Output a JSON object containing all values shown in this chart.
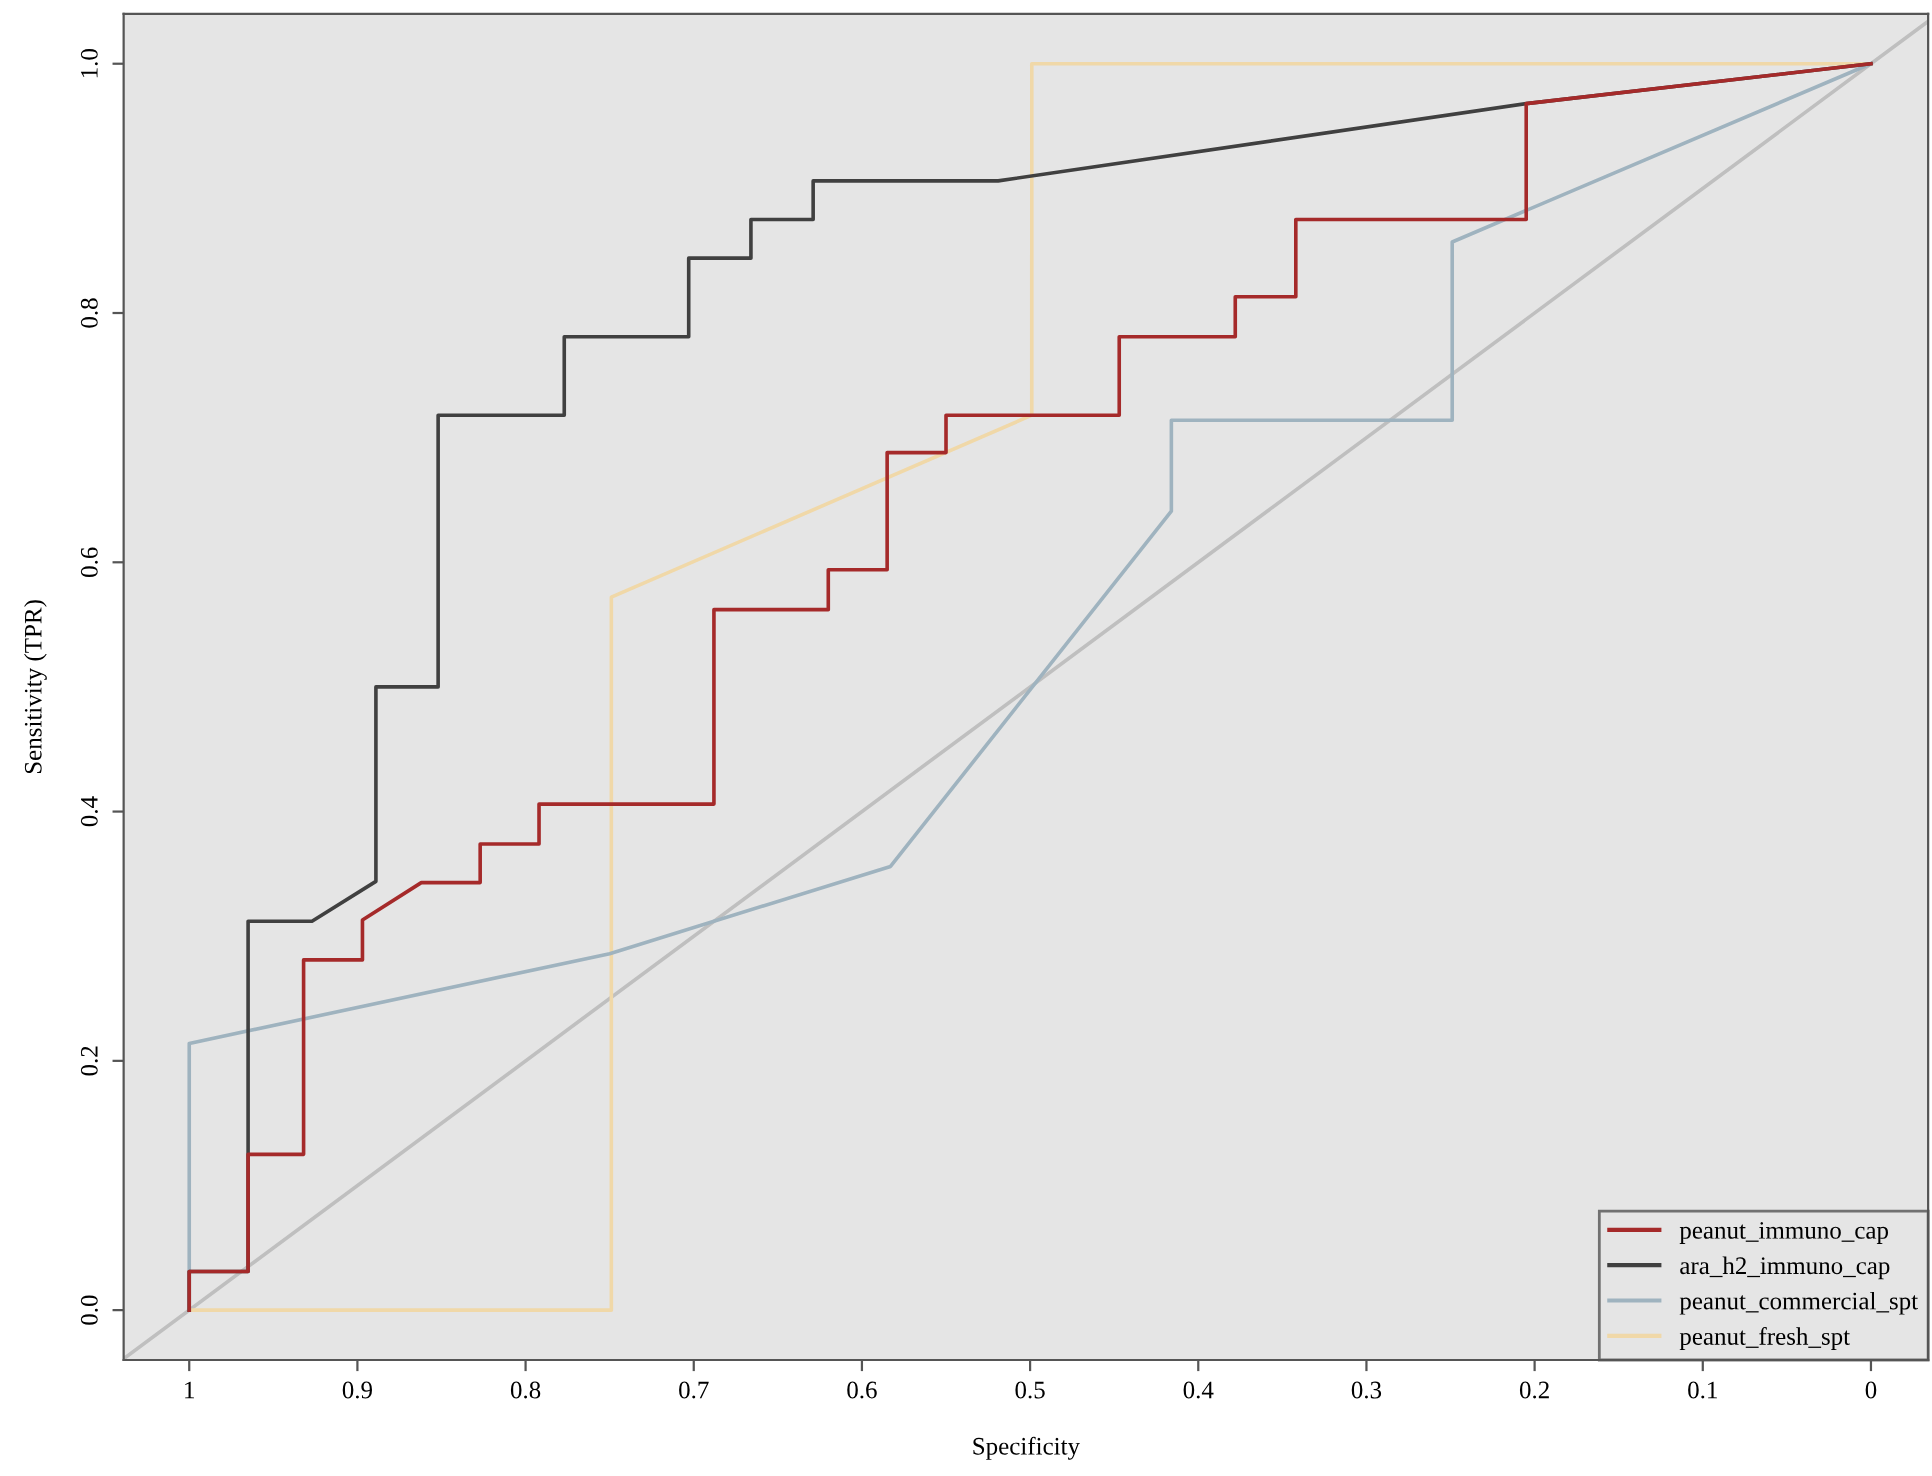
{
  "chart_data": {
    "type": "line",
    "xlabel": "Specificity",
    "ylabel": "Sensitivity (TPR)",
    "xlim": [
      1.039,
      -0.034
    ],
    "ylim": [
      -0.04,
      1.04
    ],
    "xticks": [
      1,
      0.9,
      0.8,
      0.7,
      0.6,
      0.5,
      0.4,
      0.3,
      0.2,
      0.1,
      0
    ],
    "yticks": [
      {
        "value": 0,
        "label": "0.0"
      },
      {
        "value": 0.2,
        "label": "0.2"
      },
      {
        "value": 0.4,
        "label": "0.4"
      },
      {
        "value": 0.6,
        "label": "0.6"
      },
      {
        "value": 0.8,
        "label": "0.8"
      },
      {
        "value": 1,
        "label": "1.0"
      }
    ],
    "grid": false,
    "legend": "bottom right",
    "marker": "none",
    "line_style": "solid",
    "series": [
      {
        "color": "#bfbfbf",
        "x": [
          1.039,
          -0.034
        ],
        "values": [
          -0.039,
          1.034
        ]
      },
      {
        "name": "peanut_fresh_spt",
        "color": "#f0d8a8",
        "x": [
          1,
          0.749,
          0.749,
          0.499,
          0.499,
          0
        ],
        "values": [
          0,
          0,
          0.572,
          0.718,
          1,
          1
        ]
      },
      {
        "name": "peanut_commercial_spt",
        "color": "#9fb3bf",
        "x": [
          1,
          1,
          0.75,
          0.583,
          0.416,
          0.416,
          0.249,
          0.249,
          0
        ],
        "values": [
          0,
          0.214,
          0.286,
          0.356,
          0.641,
          0.714,
          0.714,
          0.857,
          1
        ]
      },
      {
        "name": "ara_h2_immuno_cap",
        "color": "#404040",
        "x": [
          1,
          1,
          0.965,
          0.965,
          0.927,
          0.889,
          0.889,
          0.852,
          0.852,
          0.777,
          0.777,
          0.703,
          0.703,
          0.666,
          0.666,
          0.629,
          0.629,
          0.519,
          0.205,
          0
        ],
        "values": [
          0,
          0.031,
          0.031,
          0.312,
          0.312,
          0.344,
          0.5,
          0.5,
          0.718,
          0.718,
          0.781,
          0.781,
          0.844,
          0.844,
          0.875,
          0.875,
          0.906,
          0.906,
          0.968,
          1
        ]
      },
      {
        "name": "peanut_immuno_cap",
        "color": "#a52a2a",
        "x": [
          1,
          1,
          0.965,
          0.965,
          0.932,
          0.932,
          0.897,
          0.897,
          0.862,
          0.827,
          0.827,
          0.792,
          0.792,
          0.688,
          0.688,
          0.62,
          0.62,
          0.585,
          0.585,
          0.55,
          0.55,
          0.447,
          0.447,
          0.378,
          0.378,
          0.342,
          0.342,
          0.205,
          0.205,
          0
        ],
        "values": [
          0,
          0.031,
          0.031,
          0.125,
          0.125,
          0.281,
          0.281,
          0.313,
          0.343,
          0.343,
          0.374,
          0.374,
          0.406,
          0.406,
          0.562,
          0.562,
          0.594,
          0.594,
          0.688,
          0.688,
          0.718,
          0.718,
          0.781,
          0.781,
          0.813,
          0.813,
          0.875,
          0.875,
          0.968,
          1
        ]
      }
    ]
  }
}
